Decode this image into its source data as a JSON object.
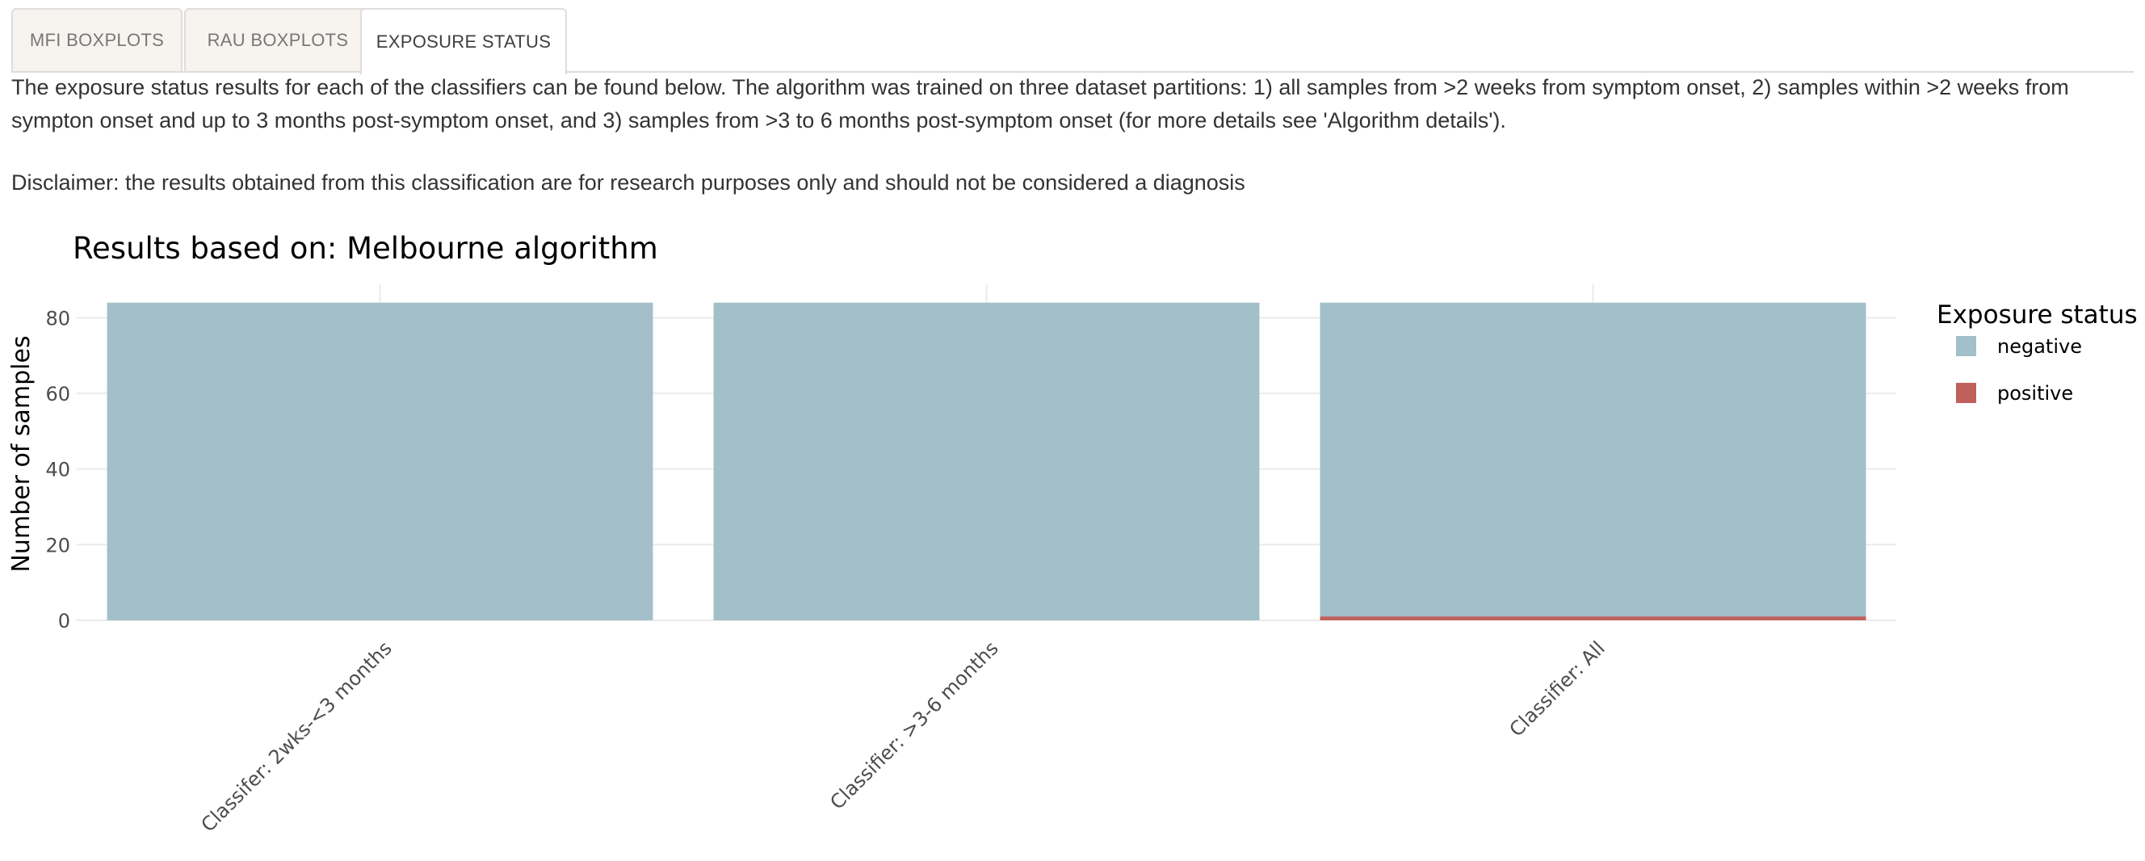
{
  "tabs": [
    {
      "label": "MFI BOXPLOTS",
      "active": false
    },
    {
      "label": "RAU BOXPLOTS",
      "active": false
    },
    {
      "label": "EXPOSURE STATUS",
      "active": true
    }
  ],
  "intro_text": "The exposure status results for each of the classifiers can be found below. The algorithm was trained on three dataset partitions: 1) all samples from >2 weeks from symptom onset, 2) samples within >2 weeks from sympton onset and up to 3 months post-symptom onset, and 3) samples from >3 to 6 months post-symptom onset (for more details see 'Algorithm details').",
  "disclaimer_text": "Disclaimer: the results obtained from this classification are for research purposes only and should not be considered a diagnosis",
  "chart_data": {
    "type": "bar",
    "stacked": true,
    "title": "Results based on: Melbourne algorithm",
    "xlabel": "",
    "ylabel": "Number of samples",
    "categories": [
      "Classifer: 2wks-<3 months",
      "Classifier: >3-6 months",
      "Classifier: All"
    ],
    "series": [
      {
        "name": "negative",
        "color": "#a3bfca",
        "values": [
          84,
          84,
          83
        ]
      },
      {
        "name": "positive",
        "color": "#c0605a",
        "values": [
          0,
          0,
          1
        ]
      }
    ],
    "ylim": [
      0,
      88
    ],
    "yticks": [
      0,
      20,
      40,
      60,
      80
    ],
    "grid": true,
    "legend": {
      "title": "Exposure status",
      "position": "right"
    }
  }
}
